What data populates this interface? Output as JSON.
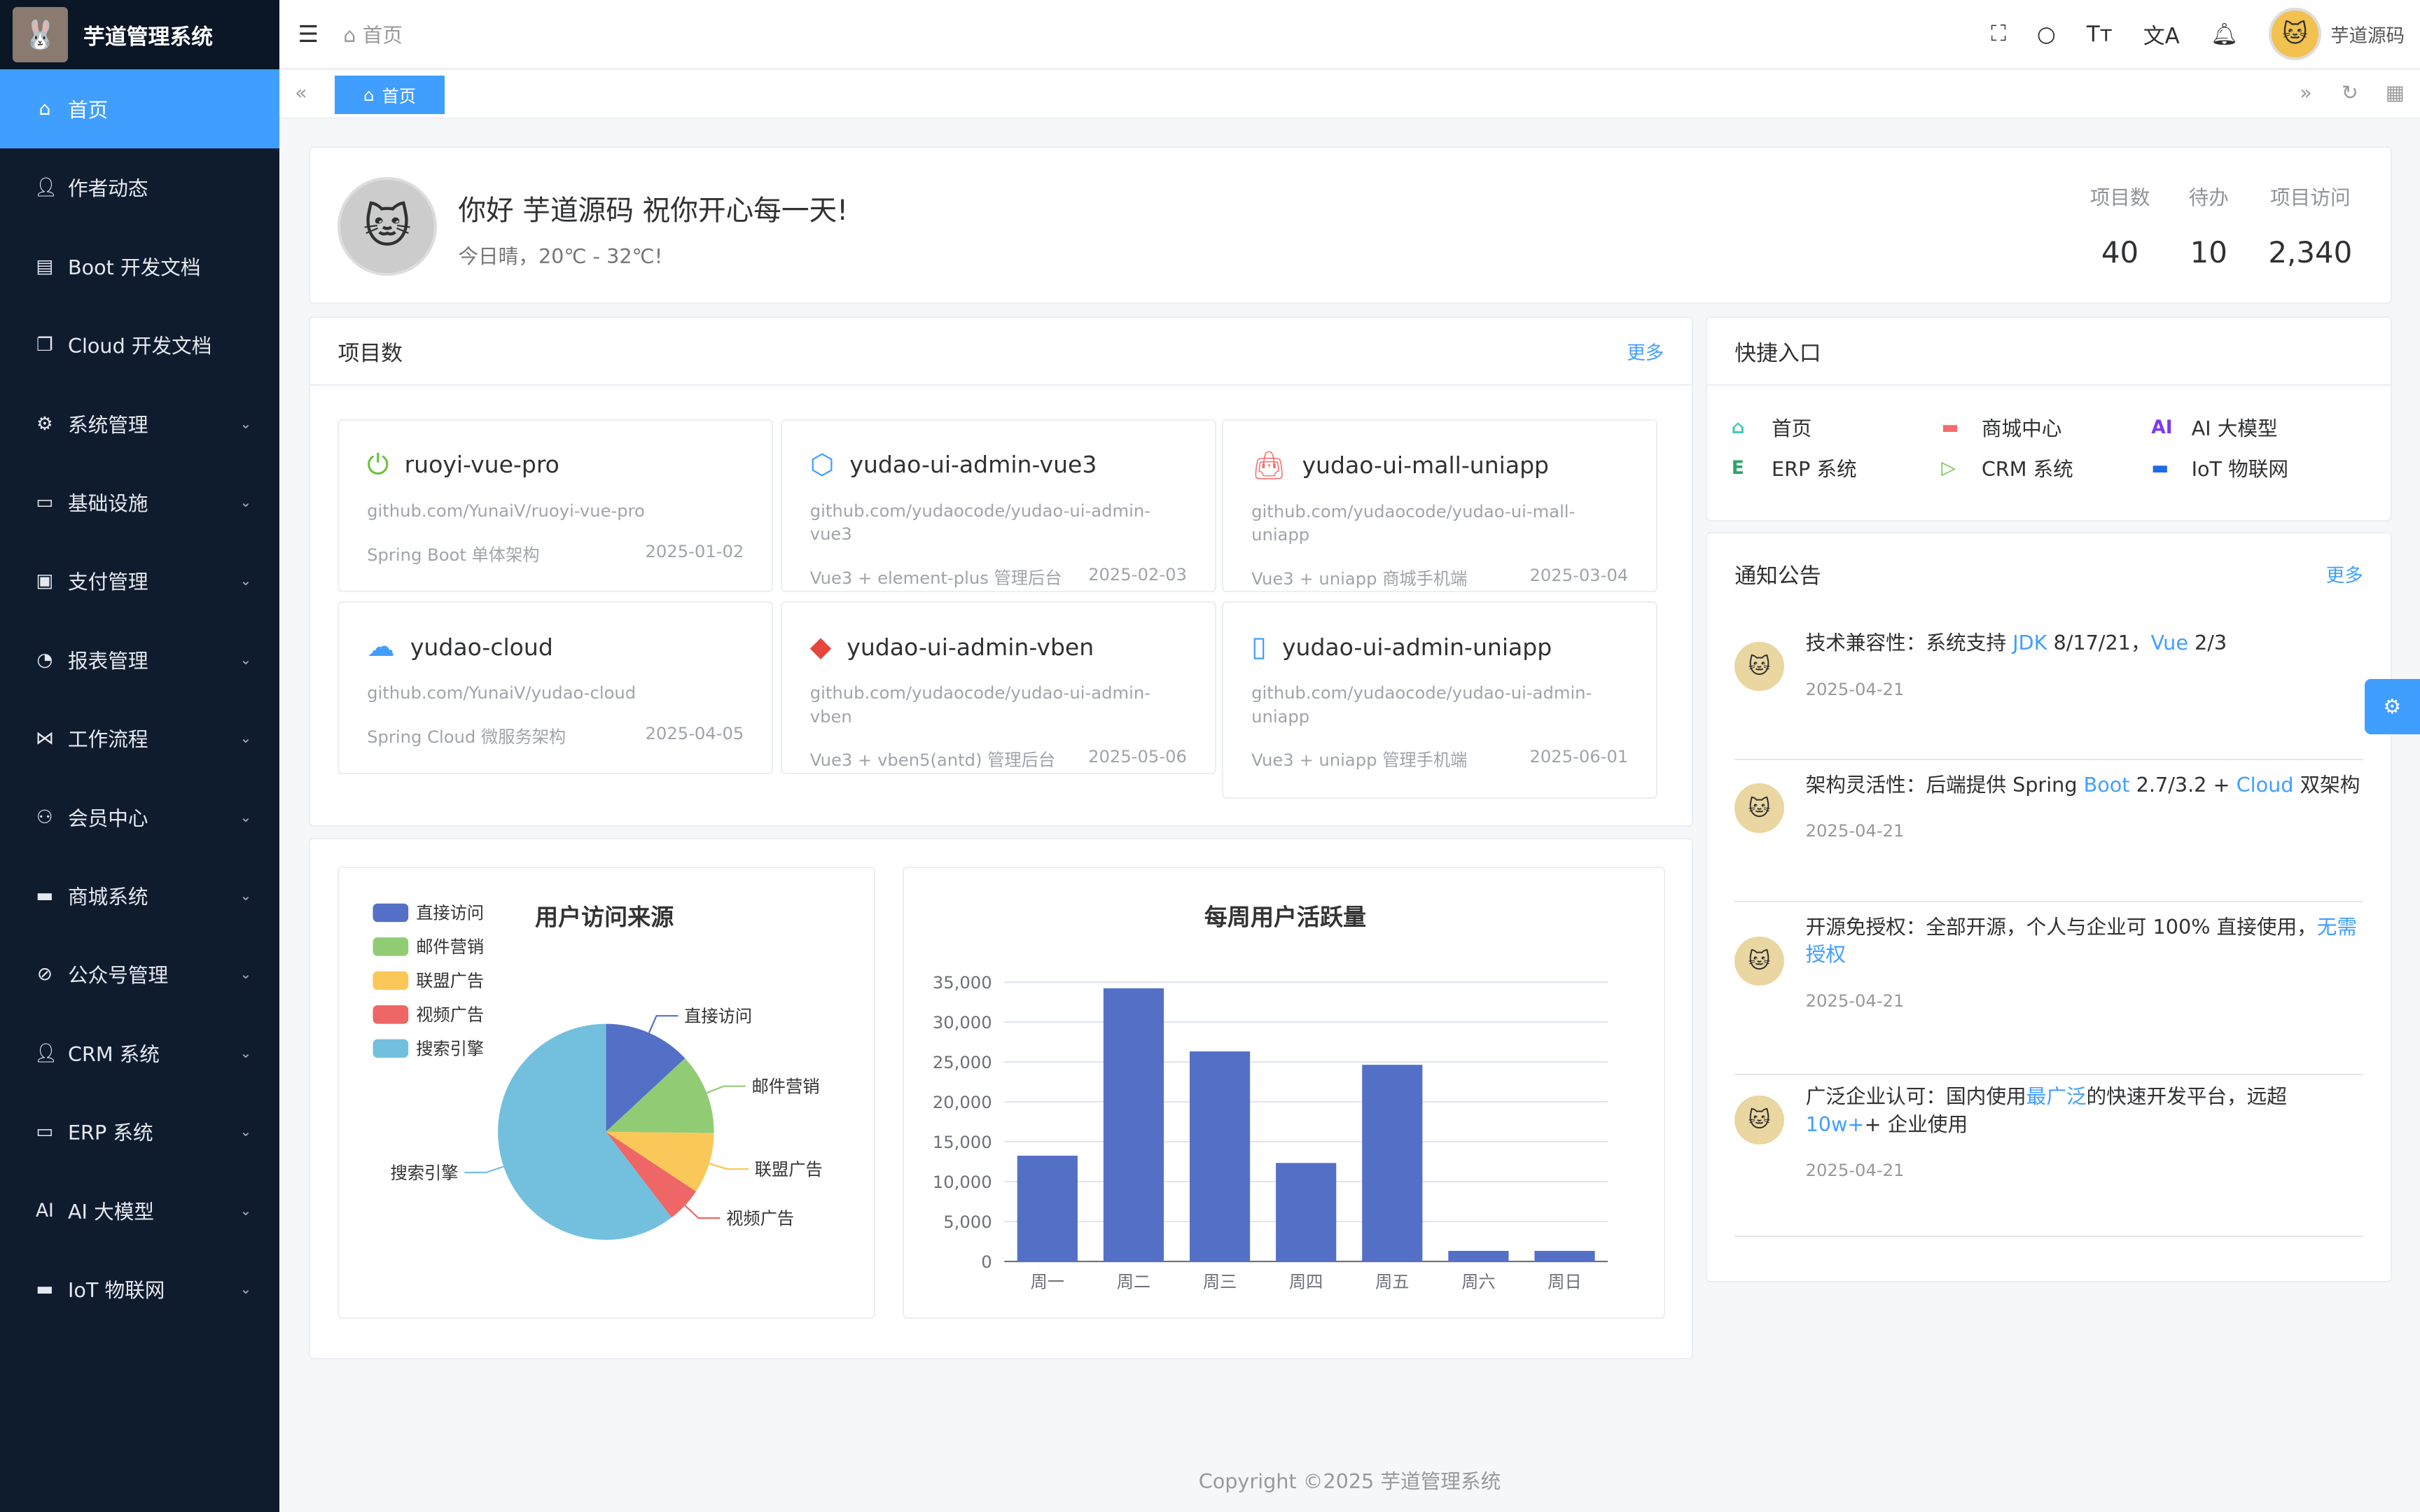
{
  "app": {
    "title": "芋道管理系统",
    "user": "芋道源码",
    "footer": "Copyright ©2025 芋道管理系统"
  },
  "header": {
    "breadcrumb": "首页",
    "tab": "首页"
  },
  "sidebar": {
    "items": [
      {
        "label": "首页",
        "icon": "home",
        "active": true
      },
      {
        "label": "作者动态",
        "icon": "user"
      },
      {
        "label": "Boot 开发文档",
        "icon": "document"
      },
      {
        "label": "Cloud 开发文档",
        "icon": "documents"
      },
      {
        "label": "系统管理",
        "icon": "gear",
        "sub": true
      },
      {
        "label": "基础设施",
        "icon": "monitor",
        "sub": true
      },
      {
        "label": "支付管理",
        "icon": "wallet",
        "sub": true
      },
      {
        "label": "报表管理",
        "icon": "pie",
        "sub": true
      },
      {
        "label": "工作流程",
        "icon": "flow",
        "sub": true
      },
      {
        "label": "会员中心",
        "icon": "members",
        "sub": true
      },
      {
        "label": "商城系统",
        "icon": "shop",
        "sub": true
      },
      {
        "label": "公众号管理",
        "icon": "compass",
        "sub": true
      },
      {
        "label": "CRM 系统",
        "icon": "user",
        "sub": true
      },
      {
        "label": "ERP 系统",
        "icon": "store",
        "sub": true
      },
      {
        "label": "AI 大模型",
        "icon": "ai",
        "sub": true
      },
      {
        "label": "IoT 物联网",
        "icon": "cloud-server",
        "sub": true
      }
    ]
  },
  "welcome": {
    "greeting": "你好 芋道源码 祝你开心每一天!",
    "weather": "今日晴，20℃ - 32℃!",
    "stats": [
      {
        "label": "项目数",
        "value": "40"
      },
      {
        "label": "待办",
        "value": "10"
      },
      {
        "label": "项目访问",
        "value": "2,340"
      }
    ]
  },
  "projects": {
    "title": "项目数",
    "more": "更多",
    "items": [
      {
        "name": "ruoyi-vue-pro",
        "url": "github.com/YunaiV/ruoyi-vue-pro",
        "desc": "Spring Boot 单体架构",
        "date": "2025-01-02",
        "icon": "power",
        "color": "#67c23a"
      },
      {
        "name": "yudao-ui-admin-vue3",
        "url": "github.com/yudaocode/yudao-ui-admin-vue3",
        "desc": "Vue3 + element-plus 管理后台",
        "date": "2025-02-03",
        "icon": "cube",
        "color": "#409eff"
      },
      {
        "name": "yudao-ui-mall-uniapp",
        "url": "github.com/yudaocode/yudao-ui-mall-uniapp",
        "desc": "Vue3 + uniapp 商城手机端",
        "date": "2025-03-04",
        "icon": "bag",
        "color": "#f56c6c"
      },
      {
        "name": "yudao-cloud",
        "url": "github.com/YunaiV/yudao-cloud",
        "desc": "Spring Cloud 微服务架构",
        "date": "2025-04-05",
        "icon": "cloud",
        "color": "#409eff"
      },
      {
        "name": "yudao-ui-admin-vben",
        "url": "github.com/yudaocode/yudao-ui-admin-vben",
        "desc": "Vue3 + vben5(antd) 管理后台",
        "date": "2025-05-06",
        "icon": "diamond",
        "color": "#e6463d"
      },
      {
        "name": "yudao-ui-admin-uniapp",
        "url": "github.com/yudaocode/yudao-ui-admin-uniapp",
        "desc": "Vue3 + uniapp 管理手机端",
        "date": "2025-06-01",
        "icon": "phone",
        "color": "#409eff"
      }
    ]
  },
  "quick": {
    "title": "快捷入口",
    "items": [
      {
        "label": "首页",
        "icon": "home",
        "color": "#3fc9b8"
      },
      {
        "label": "商城中心",
        "icon": "shop",
        "color": "#f56c6c"
      },
      {
        "label": "AI 大模型",
        "icon": "ai",
        "color": "#7c3aed"
      },
      {
        "label": "ERP 系统",
        "icon": "erp",
        "color": "#2fa56b"
      },
      {
        "label": "CRM 系统",
        "icon": "play",
        "color": "#67c23a"
      },
      {
        "label": "IoT 物联网",
        "icon": "server",
        "color": "#1e6be6"
      }
    ]
  },
  "notice": {
    "title": "通知公告",
    "more": "更多",
    "items": [
      {
        "parts": [
          "技术兼容性：系统支持 ",
          "JDK",
          " 8/17/21，",
          "Vue",
          " 2/3"
        ],
        "date": "2025-04-21"
      },
      {
        "parts": [
          "架构灵活性：后端提供 Spring ",
          "Boot",
          " 2.7/3.2 + ",
          "Cloud",
          " 双架构"
        ],
        "date": "2025-04-21"
      },
      {
        "parts": [
          "开源免授权：全部开源，个人与企业可 100% 直接使用，",
          "无需授权",
          "",
          "",
          ""
        ],
        "date": "2025-04-21"
      },
      {
        "parts": [
          "广泛企业认可：国内使用",
          "最广泛",
          "的快速开发平台，远超 ",
          "10w+",
          "+ 企业使用"
        ],
        "date": "2025-04-21"
      }
    ]
  },
  "chart_data": [
    {
      "type": "pie",
      "title": "用户访问来源",
      "legend_position": "top-left",
      "categories": [
        "直接访问",
        "邮件营销",
        "联盟广告",
        "视频广告",
        "搜索引擎"
      ],
      "values": [
        335,
        310,
        234,
        135,
        1548
      ],
      "colors": [
        "#5470c6",
        "#91cc75",
        "#fac858",
        "#ee6666",
        "#73c0de"
      ]
    },
    {
      "type": "bar",
      "title": "每周用户活跃量",
      "categories": [
        "周一",
        "周二",
        "周三",
        "周四",
        "周五",
        "周六",
        "周日"
      ],
      "values": [
        13253,
        34235,
        26321,
        12340,
        24643,
        1322,
        1324
      ],
      "ylim": [
        0,
        35000
      ],
      "yticks": [
        "0",
        "5,000",
        "10,000",
        "15,000",
        "20,000",
        "25,000",
        "30,000",
        "35,000"
      ],
      "grid": true,
      "color": "#5470c6"
    }
  ]
}
